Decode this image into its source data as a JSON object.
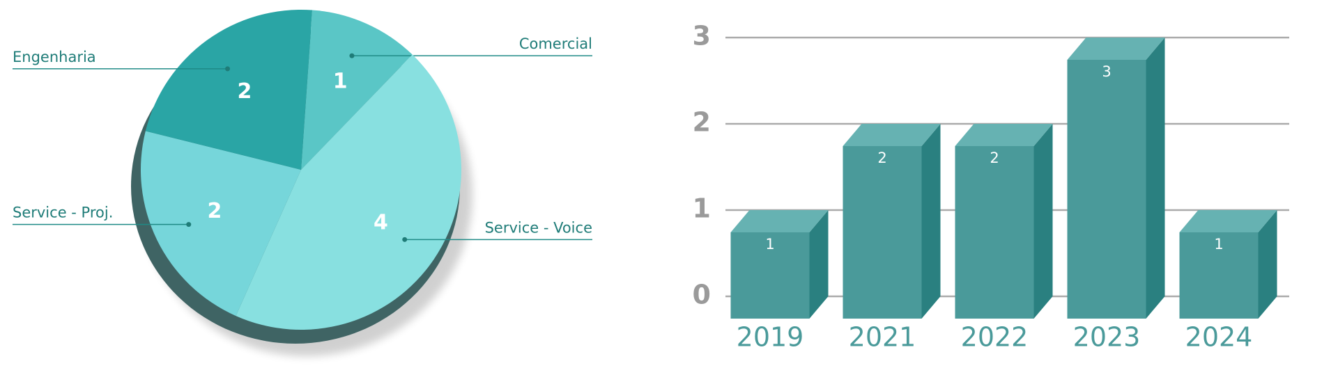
{
  "chart_data": [
    {
      "type": "pie",
      "categories": [
        "Comercial",
        "Service - Voice",
        "Service - Proj.",
        "Engenharia"
      ],
      "values": [
        1,
        4,
        2,
        2
      ],
      "colors": [
        "#5ac6c6",
        "#88e0e0",
        "#76d6da",
        "#2aa5a5"
      ]
    },
    {
      "type": "bar3d",
      "categories": [
        "2019",
        "2021",
        "2022",
        "2023",
        "2024"
      ],
      "values": [
        1,
        2,
        2,
        3,
        1
      ],
      "color": "#4a9a9a",
      "ylim": [
        0,
        3
      ],
      "yticks": [
        0,
        1,
        2,
        3
      ],
      "grid": true
    }
  ]
}
